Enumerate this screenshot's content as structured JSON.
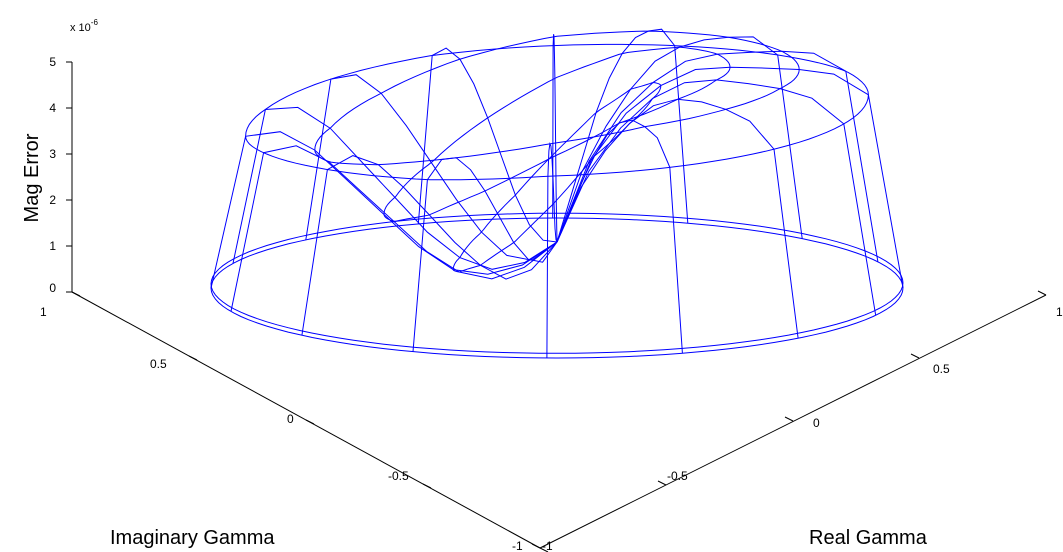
{
  "chart_data": {
    "type": "surface-mesh-3d",
    "xlabel": "Real Gamma",
    "ylabel": "Imaginary Gamma",
    "zlabel": "Mag Error",
    "z_multiplier": "x 10",
    "z_multiplier_exponent": "-6",
    "xlim": [
      -1,
      1
    ],
    "ylim": [
      -1,
      1
    ],
    "zlim": [
      0,
      5
    ],
    "x_ticks": [
      "-1",
      "-0.5",
      "0",
      "0.5",
      "1"
    ],
    "y_ticks": [
      "-1",
      "-0.5",
      "0",
      "0.5",
      "1"
    ],
    "z_ticks": [
      "0",
      "1",
      "2",
      "3",
      "4",
      "5"
    ],
    "line_color": "#0000ff",
    "grid": false,
    "meridians": [
      {
        "angle": 0.0,
        "values": [
          0.0,
          4.2,
          4.65,
          4.75,
          4.78,
          4.8,
          4.75,
          4.4,
          3.8,
          2.8,
          1.0
        ]
      },
      {
        "angle": 0.4,
        "values": [
          0.0,
          4.1,
          4.6,
          4.75,
          4.8,
          4.82,
          4.7,
          4.3,
          3.6,
          2.6,
          1.0
        ]
      },
      {
        "angle": 0.8,
        "values": [
          0.0,
          4.0,
          4.5,
          4.65,
          4.7,
          4.65,
          4.4,
          3.9,
          3.2,
          2.3,
          1.0
        ]
      },
      {
        "angle": 1.2,
        "values": [
          0.0,
          3.9,
          4.4,
          4.5,
          4.5,
          4.3,
          3.9,
          3.3,
          2.6,
          1.8,
          1.0
        ]
      },
      {
        "angle": 1.6,
        "values": [
          0.0,
          3.8,
          4.2,
          4.2,
          4.0,
          3.6,
          3.0,
          2.3,
          1.6,
          1.2,
          1.0
        ]
      },
      {
        "angle": 2.0,
        "values": [
          0.0,
          3.6,
          3.9,
          3.8,
          3.4,
          2.8,
          2.1,
          1.4,
          0.9,
          0.7,
          1.0
        ]
      },
      {
        "angle": 2.4,
        "values": [
          0.0,
          3.5,
          3.7,
          3.4,
          2.8,
          2.1,
          1.4,
          0.8,
          0.4,
          0.5,
          1.0
        ]
      },
      {
        "angle": 2.8,
        "values": [
          0.0,
          3.4,
          3.5,
          3.1,
          2.4,
          1.7,
          1.0,
          0.5,
          0.3,
          0.5,
          1.0
        ]
      },
      {
        "angle": 3.14,
        "values": [
          0.0,
          3.3,
          3.4,
          3.0,
          2.3,
          1.6,
          0.9,
          0.4,
          0.3,
          0.5,
          1.0
        ]
      },
      {
        "angle": 3.5,
        "values": [
          0.0,
          3.4,
          3.5,
          3.1,
          2.4,
          1.7,
          1.0,
          0.5,
          0.3,
          0.5,
          1.0
        ]
      },
      {
        "angle": 3.9,
        "values": [
          0.0,
          3.6,
          3.8,
          3.5,
          2.9,
          2.2,
          1.5,
          0.9,
          0.5,
          0.5,
          1.0
        ]
      },
      {
        "angle": 4.3,
        "values": [
          0.0,
          3.8,
          4.1,
          4.0,
          3.6,
          3.0,
          2.3,
          1.6,
          1.1,
          0.9,
          1.0
        ]
      },
      {
        "angle": 4.7,
        "values": [
          0.0,
          3.9,
          4.3,
          4.4,
          4.2,
          3.8,
          3.2,
          2.5,
          1.8,
          1.3,
          1.0
        ]
      },
      {
        "angle": 5.1,
        "values": [
          0.0,
          4.0,
          4.5,
          4.6,
          4.6,
          4.4,
          4.0,
          3.4,
          2.6,
          1.8,
          1.0
        ]
      },
      {
        "angle": 5.5,
        "values": [
          0.0,
          4.1,
          4.6,
          4.7,
          4.75,
          4.7,
          4.5,
          4.0,
          3.3,
          2.4,
          1.0
        ]
      },
      {
        "angle": 5.9,
        "values": [
          0.0,
          4.2,
          4.65,
          4.75,
          4.78,
          4.8,
          4.7,
          4.3,
          3.7,
          2.7,
          1.0
        ]
      }
    ],
    "radii": [
      1.0,
      0.9,
      0.8,
      0.7,
      0.6,
      0.5,
      0.4,
      0.3,
      0.2,
      0.1,
      0.0
    ],
    "rings": [
      {
        "radius": 0.9
      },
      {
        "radius": 0.7
      },
      {
        "radius": 0.5
      },
      {
        "radius": 0.3
      }
    ]
  }
}
